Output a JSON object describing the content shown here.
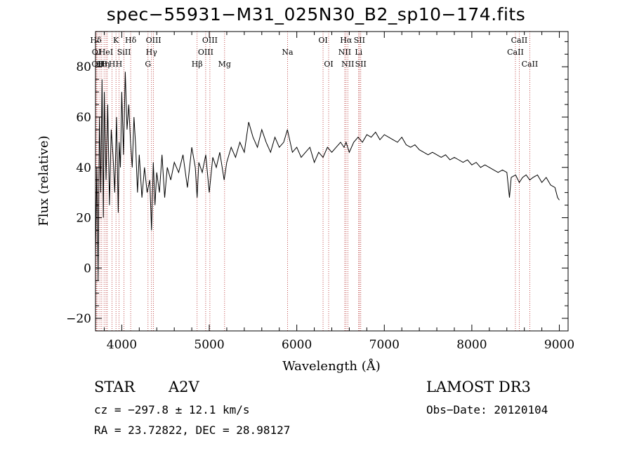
{
  "chart_data": {
    "type": "line",
    "title": "spec−55931−M31_025N30_B2_sp10−174.fits",
    "xlabel": "Wavelength (Å)",
    "ylabel": "Flux (relative)",
    "xlim": [
      3700,
      9100
    ],
    "ylim": [
      -25,
      94
    ],
    "xticks": [
      4000,
      5000,
      6000,
      7000,
      8000,
      9000
    ],
    "xtick_labels": [
      "4000",
      "5000",
      "6000",
      "7000",
      "8000",
      "9000"
    ],
    "yticks": [
      -20,
      0,
      20,
      40,
      60,
      80
    ],
    "ytick_labels": [
      "−20",
      "0",
      "20",
      "40",
      "60",
      "80"
    ],
    "grid": false,
    "series": [
      {
        "name": "flux",
        "color": "#000000",
        "x": [
          3700,
          3715,
          3730,
          3745,
          3760,
          3775,
          3790,
          3800,
          3820,
          3840,
          3860,
          3880,
          3900,
          3920,
          3940,
          3960,
          3970,
          3985,
          4000,
          4020,
          4040,
          4060,
          4080,
          4100,
          4120,
          4140,
          4160,
          4180,
          4200,
          4230,
          4260,
          4290,
          4320,
          4340,
          4360,
          4380,
          4400,
          4430,
          4460,
          4490,
          4520,
          4560,
          4600,
          4650,
          4700,
          4750,
          4800,
          4840,
          4861,
          4880,
          4920,
          4960,
          5000,
          5040,
          5080,
          5120,
          5170,
          5200,
          5250,
          5300,
          5350,
          5400,
          5450,
          5500,
          5550,
          5600,
          5650,
          5700,
          5750,
          5800,
          5850,
          5893,
          5950,
          6000,
          6050,
          6100,
          6150,
          6200,
          6250,
          6300,
          6350,
          6400,
          6450,
          6500,
          6540,
          6563,
          6600,
          6650,
          6700,
          6750,
          6800,
          6850,
          6900,
          6950,
          7000,
          7050,
          7100,
          7150,
          7200,
          7250,
          7300,
          7350,
          7400,
          7450,
          7500,
          7550,
          7600,
          7650,
          7700,
          7750,
          7800,
          7850,
          7900,
          7950,
          8000,
          8050,
          8100,
          8150,
          8200,
          8250,
          8300,
          8350,
          8400,
          8430,
          8450,
          8500,
          8542,
          8580,
          8620,
          8662,
          8700,
          8750,
          8800,
          8850,
          8900,
          8950,
          8980,
          9000
        ],
        "values": [
          5,
          40,
          -5,
          60,
          30,
          75,
          20,
          70,
          35,
          65,
          25,
          55,
          45,
          30,
          60,
          22,
          50,
          40,
          70,
          45,
          78,
          55,
          65,
          50,
          40,
          60,
          48,
          30,
          45,
          28,
          40,
          30,
          35,
          15,
          42,
          25,
          38,
          30,
          45,
          28,
          40,
          35,
          42,
          38,
          45,
          32,
          48,
          40,
          28,
          42,
          38,
          45,
          30,
          44,
          40,
          46,
          35,
          42,
          48,
          44,
          50,
          46,
          58,
          52,
          48,
          55,
          50,
          46,
          52,
          48,
          50,
          55,
          46,
          48,
          44,
          46,
          48,
          42,
          46,
          44,
          48,
          46,
          48,
          50,
          48,
          50,
          46,
          50,
          52,
          50,
          53,
          52,
          54,
          51,
          53,
          52,
          51,
          50,
          52,
          49,
          48,
          49,
          47,
          46,
          45,
          46,
          45,
          44,
          45,
          43,
          44,
          43,
          42,
          43,
          41,
          42,
          40,
          41,
          40,
          39,
          38,
          39,
          38,
          28,
          36,
          37,
          34,
          36,
          37,
          35,
          36,
          37,
          34,
          36,
          33,
          32,
          28,
          27
        ]
      }
    ],
    "lines": [
      {
        "x": 3704,
        "top": "Hδ"
      },
      {
        "x": 3712,
        "mid": "OI"
      },
      {
        "x": 3726,
        "low": "OII"
      },
      {
        "x": 3750,
        "low": "H"
      },
      {
        "x": 3771,
        "low": "H"
      },
      {
        "x": 3798,
        "low": "H"
      },
      {
        "x": 3820,
        "mid": "HeI"
      },
      {
        "x": 3835,
        "low": "η"
      },
      {
        "x": 3889,
        "low": "H"
      },
      {
        "x": 3934,
        "top": "K"
      },
      {
        "x": 3968,
        "low": "H"
      },
      {
        "x": 4026,
        "mid": "SiII"
      },
      {
        "x": 4102,
        "top": "Hδ"
      },
      {
        "x": 4300,
        "low": "G"
      },
      {
        "x": 4340,
        "mid": "Hγ"
      },
      {
        "x": 4363,
        "top": "OIII"
      },
      {
        "x": 4861,
        "low": "Hβ"
      },
      {
        "x": 4959,
        "mid": "OIII"
      },
      {
        "x": 5007,
        "top": "OIII"
      },
      {
        "x": 5175,
        "low": "Mg"
      },
      {
        "x": 5894,
        "mid": "Na"
      },
      {
        "x": 6300,
        "top": "OI"
      },
      {
        "x": 6364,
        "low": "OI"
      },
      {
        "x": 6548,
        "mid": "NII"
      },
      {
        "x": 6563,
        "top": "Hα"
      },
      {
        "x": 6583,
        "low": "NII"
      },
      {
        "x": 6707,
        "mid": "Li"
      },
      {
        "x": 6716,
        "top": "SII"
      },
      {
        "x": 6731,
        "low": "SII"
      },
      {
        "x": 8498,
        "mid": "CaII"
      },
      {
        "x": 8542,
        "top": "CaII"
      },
      {
        "x": 8662,
        "low": "CaII"
      }
    ],
    "colors": {
      "line": "#000000",
      "marker": "#b22222"
    }
  },
  "info": {
    "class": "STAR",
    "subclass": "A2V",
    "survey": "LAMOST DR3",
    "cz": "cz = −297.8 ± 12.1 km/s",
    "obsdate": "Obs−Date: 20120104",
    "coords": "RA =  23.72822, DEC =  28.98127"
  }
}
